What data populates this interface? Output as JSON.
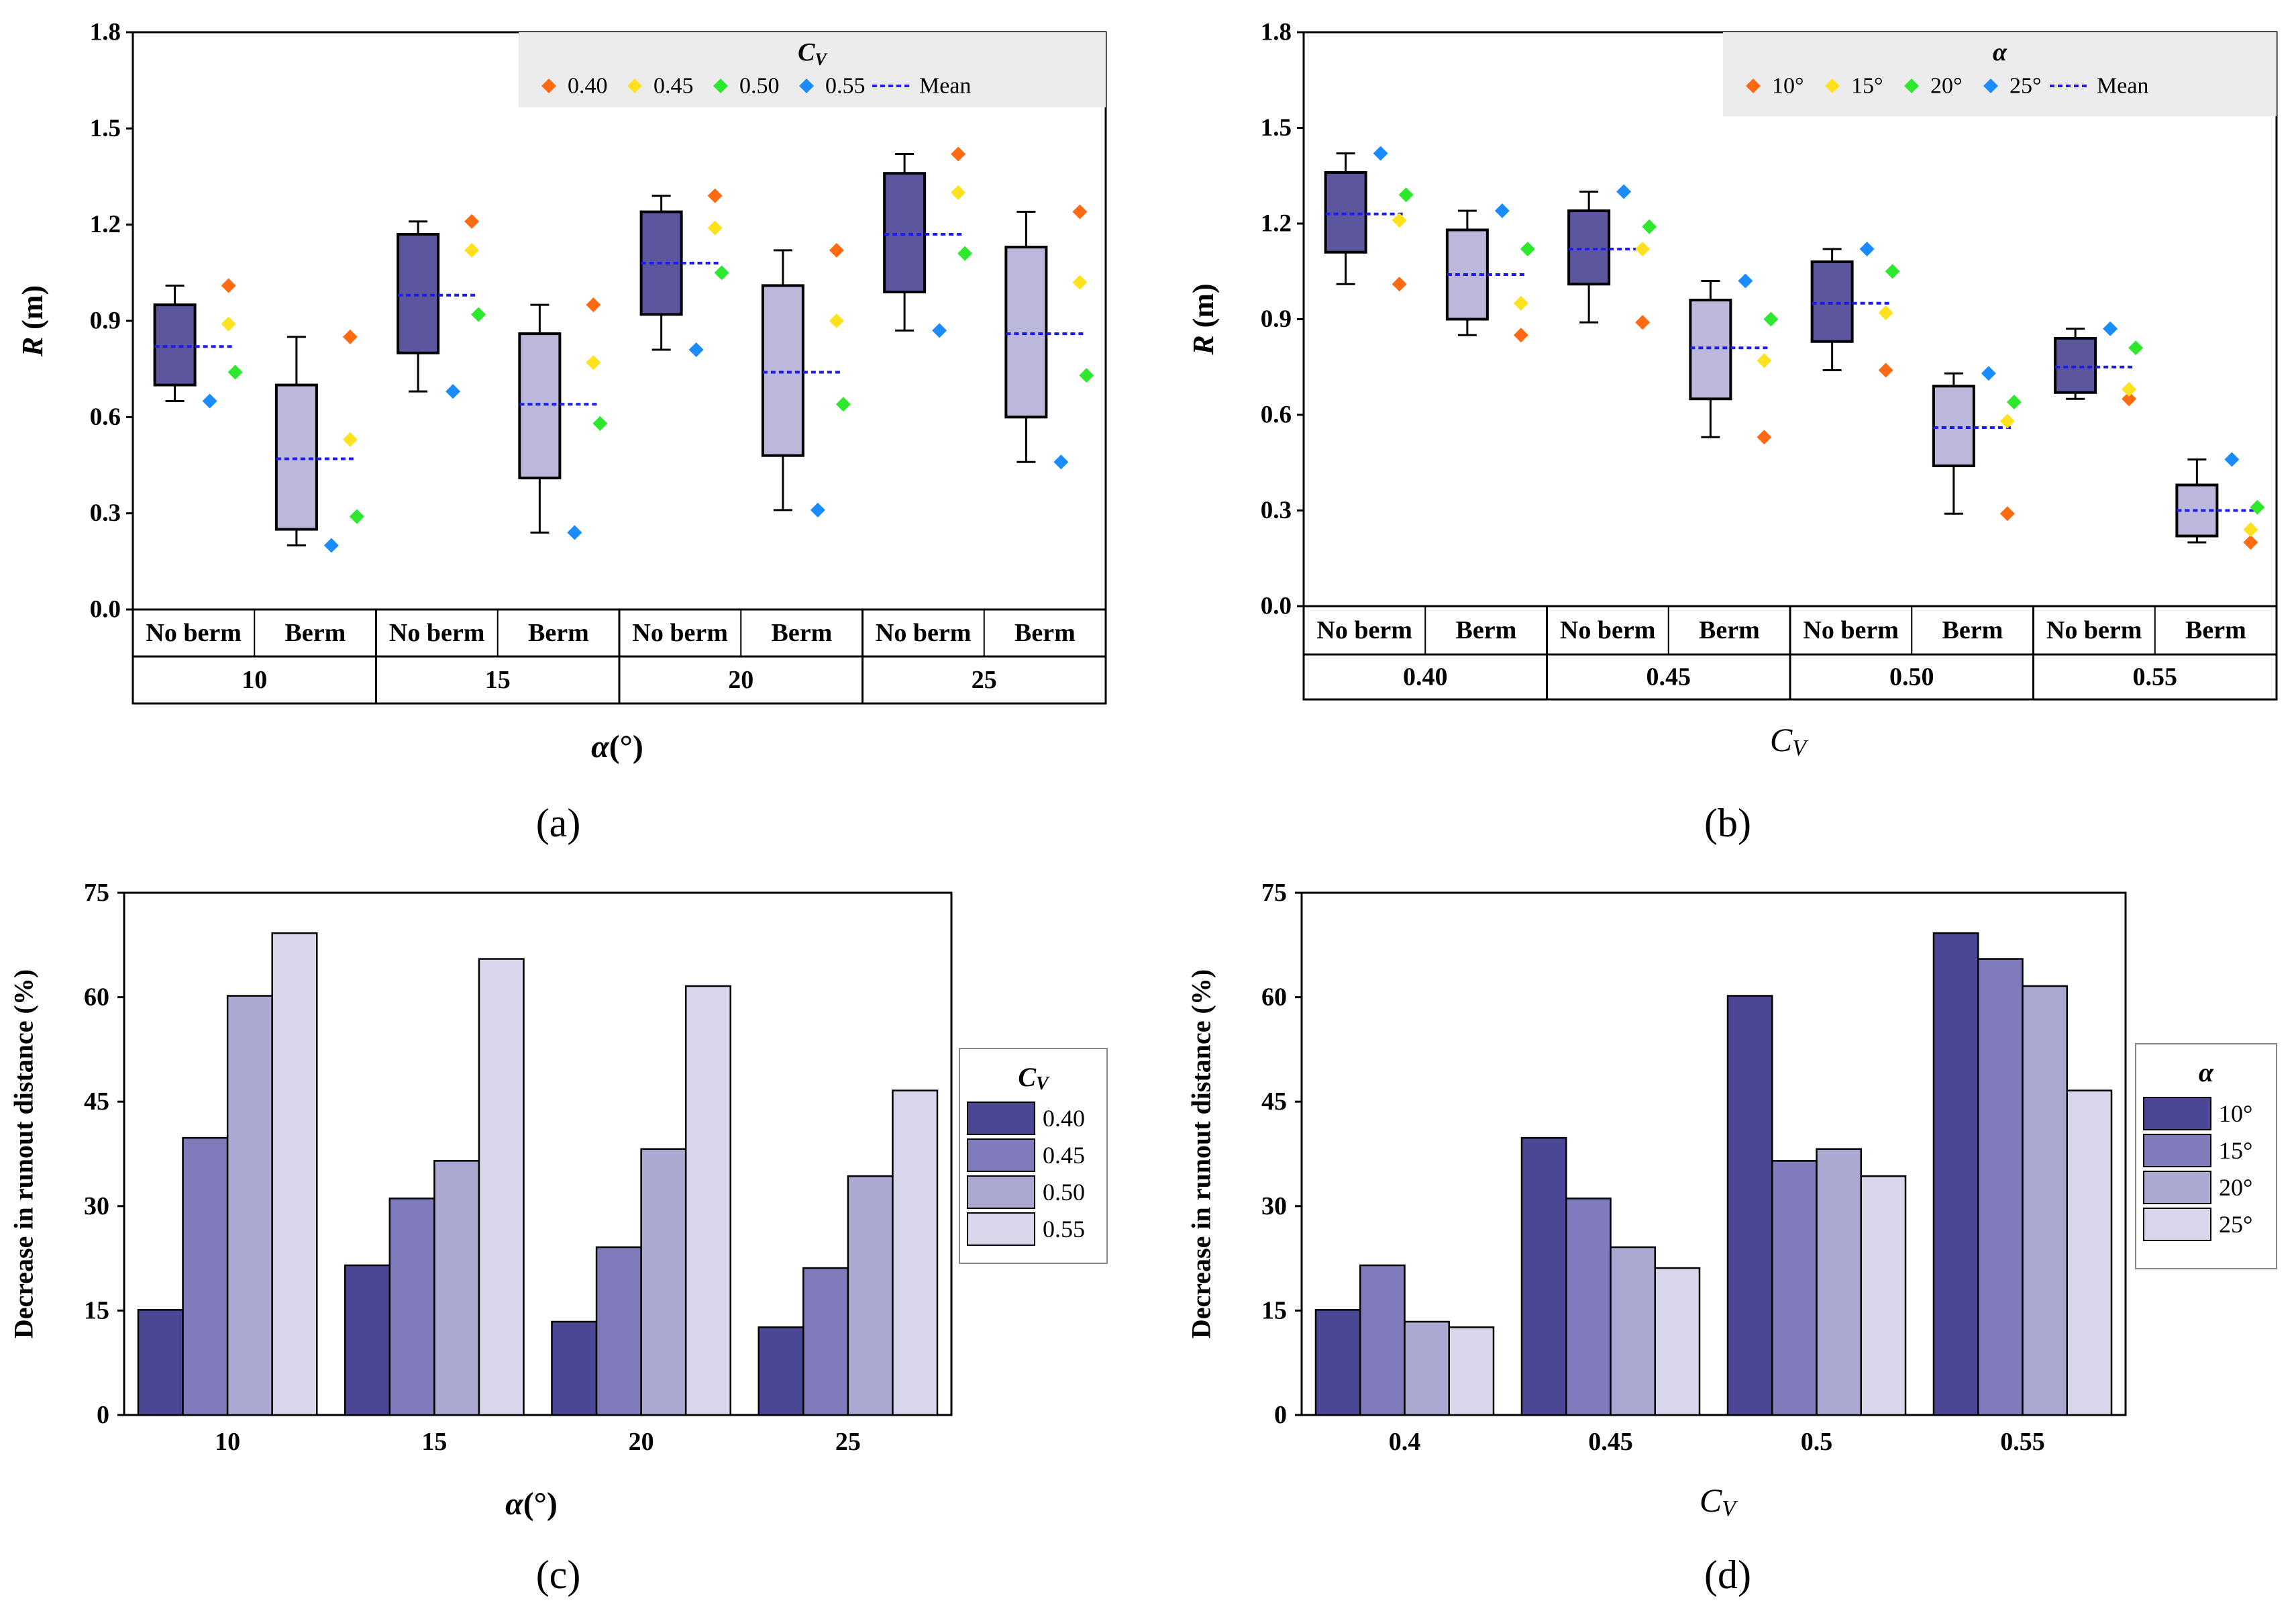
{
  "colors": {
    "box_no_berm": "#5c569f",
    "box_berm": "#bcb8dc",
    "mean_line": "#1c1cf0",
    "legend_bg": "#ececec",
    "marker_colors": [
      "#ff6a13",
      "#ffe11e",
      "#2ee82e",
      "#1a8cff"
    ],
    "bar_colors": [
      "#4b4795",
      "#807bbb",
      "#aba8d2",
      "#d8d6ea"
    ]
  },
  "chart_data": [
    {
      "panel_label": "(a)",
      "type": "box",
      "xlabel_prefix": "α",
      "xlabel_suffix": "(°)",
      "ylabel_main": "R",
      "ylabel_unit": " (m)",
      "ylim": [
        0,
        1.8
      ],
      "yticks": [
        "0.0",
        "0.3",
        "0.6",
        "0.9",
        "1.2",
        "1.5",
        "1.8"
      ],
      "legend_title_main": "C",
      "legend_title_sub": "V",
      "legend_labels": [
        "0.40",
        "0.45",
        "0.50",
        "0.55"
      ],
      "mean_label": "Mean",
      "sub_labels": [
        "No berm",
        "Berm"
      ],
      "group_labels": [
        "10",
        "15",
        "20",
        "25"
      ],
      "boxes": [
        {
          "min": 0.65,
          "q1": 0.7,
          "q3": 0.95,
          "max": 1.01,
          "mean": 0.82,
          "points": [
            1.01,
            0.89,
            0.74,
            0.65
          ]
        },
        {
          "min": 0.2,
          "q1": 0.25,
          "q3": 0.7,
          "max": 0.85,
          "mean": 0.47,
          "points": [
            0.85,
            0.53,
            0.29,
            0.2
          ]
        },
        {
          "min": 0.68,
          "q1": 0.8,
          "q3": 1.17,
          "max": 1.21,
          "mean": 0.98,
          "points": [
            1.21,
            1.12,
            0.92,
            0.68
          ]
        },
        {
          "min": 0.24,
          "q1": 0.41,
          "q3": 0.86,
          "max": 0.95,
          "mean": 0.64,
          "points": [
            0.95,
            0.77,
            0.58,
            0.24
          ]
        },
        {
          "min": 0.81,
          "q1": 0.92,
          "q3": 1.24,
          "max": 1.29,
          "mean": 1.08,
          "points": [
            1.29,
            1.19,
            1.05,
            0.81
          ]
        },
        {
          "min": 0.31,
          "q1": 0.48,
          "q3": 1.01,
          "max": 1.12,
          "mean": 0.74,
          "points": [
            1.12,
            0.9,
            0.64,
            0.31
          ]
        },
        {
          "min": 0.87,
          "q1": 0.99,
          "q3": 1.36,
          "max": 1.42,
          "mean": 1.17,
          "points": [
            1.42,
            1.3,
            1.11,
            0.87
          ]
        },
        {
          "min": 0.46,
          "q1": 0.6,
          "q3": 1.13,
          "max": 1.24,
          "mean": 0.86,
          "points": [
            1.24,
            1.02,
            0.73,
            0.46
          ]
        }
      ]
    },
    {
      "panel_label": "(b)",
      "type": "box",
      "xlabel_main": "C",
      "xlabel_sub": "V",
      "ylabel_main": "R",
      "ylabel_unit": " (m)",
      "ylim": [
        0,
        1.8
      ],
      "yticks": [
        "0.0",
        "0.3",
        "0.6",
        "0.9",
        "1.2",
        "1.5",
        "1.8"
      ],
      "legend_title_main": "α",
      "legend_labels": [
        "10°",
        "15°",
        "20°",
        "25°"
      ],
      "mean_label": "Mean",
      "sub_labels": [
        "No berm",
        "Berm"
      ],
      "group_labels": [
        "0.40",
        "0.45",
        "0.50",
        "0.55"
      ],
      "boxes": [
        {
          "min": 1.01,
          "q1": 1.11,
          "q3": 1.36,
          "max": 1.42,
          "mean": 1.23,
          "points": [
            1.01,
            1.21,
            1.29,
            1.42
          ]
        },
        {
          "min": 0.85,
          "q1": 0.9,
          "q3": 1.18,
          "max": 1.24,
          "mean": 1.04,
          "points": [
            0.85,
            0.95,
            1.12,
            1.24
          ]
        },
        {
          "min": 0.89,
          "q1": 1.01,
          "q3": 1.24,
          "max": 1.3,
          "mean": 1.12,
          "points": [
            0.89,
            1.12,
            1.19,
            1.3
          ]
        },
        {
          "min": 0.53,
          "q1": 0.65,
          "q3": 0.96,
          "max": 1.02,
          "mean": 0.81,
          "points": [
            0.53,
            0.77,
            0.9,
            1.02
          ]
        },
        {
          "min": 0.74,
          "q1": 0.83,
          "q3": 1.08,
          "max": 1.12,
          "mean": 0.95,
          "points": [
            0.74,
            0.92,
            1.05,
            1.12
          ]
        },
        {
          "min": 0.29,
          "q1": 0.44,
          "q3": 0.69,
          "max": 0.73,
          "mean": 0.56,
          "points": [
            0.29,
            0.58,
            0.64,
            0.73
          ]
        },
        {
          "min": 0.65,
          "q1": 0.67,
          "q3": 0.84,
          "max": 0.87,
          "mean": 0.75,
          "points": [
            0.65,
            0.68,
            0.81,
            0.87
          ]
        },
        {
          "min": 0.2,
          "q1": 0.22,
          "q3": 0.38,
          "max": 0.46,
          "mean": 0.3,
          "points": [
            0.2,
            0.24,
            0.31,
            0.46
          ]
        }
      ]
    },
    {
      "panel_label": "(c)",
      "type": "bar",
      "xlabel_prefix": "α",
      "xlabel_suffix": "(°)",
      "ylabel": "Decrease in runout distance (%)",
      "ylim": [
        0,
        75
      ],
      "yticks": [
        "0",
        "15",
        "30",
        "45",
        "60",
        "75"
      ],
      "categories": [
        "10",
        "15",
        "20",
        "25"
      ],
      "legend_title_main": "C",
      "legend_title_sub": "V",
      "series": [
        {
          "name": "0.40",
          "values": [
            15.1,
            21.5,
            13.4,
            12.6
          ]
        },
        {
          "name": "0.45",
          "values": [
            39.8,
            31.1,
            24.1,
            21.1
          ]
        },
        {
          "name": "0.50",
          "values": [
            60.2,
            36.5,
            38.2,
            34.3
          ]
        },
        {
          "name": "0.55",
          "values": [
            69.2,
            65.5,
            61.6,
            46.6
          ]
        }
      ]
    },
    {
      "panel_label": "(d)",
      "type": "bar",
      "xlabel_main": "C",
      "xlabel_sub": "V",
      "ylabel": "Decrease in runout distance (%)",
      "ylim": [
        0,
        75
      ],
      "yticks": [
        "0",
        "15",
        "30",
        "45",
        "60",
        "75"
      ],
      "categories": [
        "0.4",
        "0.45",
        "0.5",
        "0.55"
      ],
      "legend_title_main": "α",
      "series": [
        {
          "name": "10°",
          "values": [
            15.1,
            39.8,
            60.2,
            69.2
          ]
        },
        {
          "name": "15°",
          "values": [
            21.5,
            31.1,
            36.5,
            65.5
          ]
        },
        {
          "name": "20°",
          "values": [
            13.4,
            24.1,
            38.2,
            61.6
          ]
        },
        {
          "name": "25°",
          "values": [
            12.6,
            21.1,
            34.3,
            46.6
          ]
        }
      ]
    }
  ]
}
